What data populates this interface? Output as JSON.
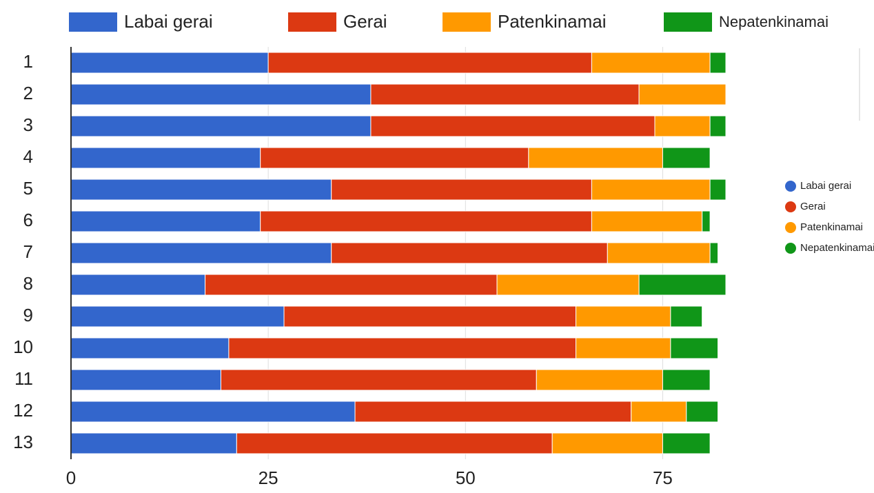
{
  "chart_data": {
    "type": "stacked-bar-horizontal",
    "categories": [
      "1",
      "2",
      "3",
      "4",
      "5",
      "6",
      "7",
      "8",
      "9",
      "10",
      "11",
      "12",
      "13"
    ],
    "series": [
      {
        "name": "Labai gerai",
        "color": "#3366cc",
        "values": [
          25,
          38,
          38,
          24,
          33,
          24,
          33,
          17,
          27,
          20,
          19,
          36,
          21
        ]
      },
      {
        "name": "Gerai",
        "color": "#dc3912",
        "values": [
          41,
          34,
          36,
          34,
          33,
          42,
          35,
          37,
          37,
          44,
          40,
          35,
          40
        ]
      },
      {
        "name": "Patenkinamai",
        "color": "#ff9900",
        "values": [
          15,
          11,
          7,
          17,
          15,
          14,
          13,
          18,
          12,
          12,
          16,
          7,
          14
        ]
      },
      {
        "name": "Nepatenkinamai",
        "color": "#109618",
        "values": [
          2,
          0,
          2,
          6,
          2,
          1,
          1,
          11,
          4,
          6,
          6,
          4,
          6
        ]
      }
    ],
    "xlim": [
      0,
      83
    ],
    "xticks": [
      0,
      25,
      50,
      75
    ],
    "grid": true
  }
}
